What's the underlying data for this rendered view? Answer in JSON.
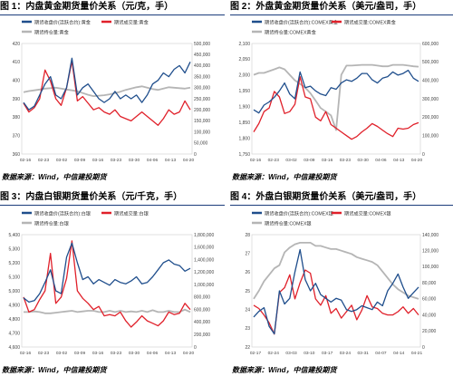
{
  "panels": [
    {
      "title": "图 1：内盘黄金期货量价关系（元/克，手）",
      "source": "数据来源：Wind，中信建投期货"
    },
    {
      "title": "图 2：外盘黄金期货量价关系（美元/盎司，手）",
      "source": "数据来源：Wind，中信建投期货"
    },
    {
      "title": "图 3：内盘白银期货量价关系（元/千克，手）",
      "source": "数据来源：Wind，中信建投期货"
    },
    {
      "title": "图 4：外盘白银期货量价关系（美元/盎司，手）",
      "source": "数据来源：Wind，中信建投期货"
    }
  ],
  "chart_data": [
    {
      "type": "line",
      "colors": [
        "#1f4e8c",
        "#e0202a",
        "#b5b5b5"
      ],
      "series": [
        {
          "name": "期货收盘价(活跃合约):黄金",
          "axis": "left",
          "values": [
            388,
            384,
            386,
            392,
            398,
            402,
            392,
            390,
            396,
            412,
            392,
            396,
            398,
            394,
            390,
            388,
            390,
            394,
            390,
            392,
            390,
            392,
            388,
            392,
            398,
            400,
            404,
            402,
            406,
            408,
            404,
            410
          ]
        },
        {
          "name": "期货成交量:黄金",
          "axis": "right",
          "values": [
            230000,
            190000,
            210000,
            250000,
            380000,
            330000,
            250000,
            220000,
            300000,
            420000,
            240000,
            260000,
            230000,
            200000,
            210000,
            190000,
            180000,
            200000,
            170000,
            160000,
            150000,
            170000,
            190000,
            170000,
            150000,
            130000,
            160000,
            200000,
            180000,
            190000,
            240000,
            200000
          ]
        },
        {
          "name": "期货持仓量:黄金",
          "axis": "right",
          "values": [
            280000,
            285000,
            288000,
            292000,
            296000,
            298000,
            300000,
            296000,
            292000,
            288000,
            284000,
            276000,
            268000,
            262000,
            264000,
            266000,
            270000,
            276000,
            282000,
            290000,
            296000,
            302000,
            306000,
            300000,
            294000,
            290000,
            296000,
            302000,
            300000,
            298000,
            296000,
            300000
          ]
        }
      ],
      "x_tick_labels": [
        "02-16",
        "02-23",
        "03-02",
        "03-09",
        "03-16",
        "03-23",
        "03-30",
        "04-06",
        "04-13",
        "04-20"
      ],
      "left_axis": {
        "min": 360,
        "max": 420,
        "ticks": [
          "360",
          "370",
          "380",
          "390",
          "400",
          "410",
          "420"
        ]
      },
      "right_axis": {
        "min": 0,
        "max": 500000,
        "ticks": [
          "0",
          "50,000",
          "100,000",
          "150,000",
          "200,000",
          "250,000",
          "300,000",
          "350,000",
          "400,000",
          "450,000",
          "500,000"
        ]
      }
    },
    {
      "type": "line",
      "colors": [
        "#1f4e8c",
        "#e0202a",
        "#b5b5b5"
      ],
      "series": [
        {
          "name": "期货收盘价(活跃合约):COMEX黄金",
          "axis": "left",
          "values": [
            1890,
            1880,
            1905,
            1915,
            1930,
            1950,
            1975,
            1940,
            1925,
            2010,
            1960,
            1965,
            1950,
            1940,
            1935,
            1960,
            1955,
            1975,
            1985,
            1980,
            1990,
            2005,
            2005,
            1985,
            1975,
            1990,
            1995,
            2010,
            2000,
            2005,
            2015,
            1990,
            1980
          ]
        },
        {
          "name": "期货成交量:COMEX黄金",
          "axis": "right",
          "values": [
            120000,
            165000,
            230000,
            250000,
            340000,
            310000,
            220000,
            230000,
            270000,
            420000,
            310000,
            300000,
            200000,
            180000,
            230000,
            160000,
            140000,
            120000,
            100000,
            80000,
            95000,
            120000,
            140000,
            165000,
            150000,
            130000,
            110000,
            95000,
            140000,
            135000,
            140000,
            160000,
            170000
          ]
        },
        {
          "name": "期货持仓量:COMEX黄金",
          "axis": "right",
          "values": [
            430000,
            440000,
            440000,
            450000,
            460000,
            470000,
            460000,
            430000,
            400000,
            380000,
            360000,
            330000,
            290000,
            250000,
            230000,
            210000,
            130000,
            430000,
            480000,
            480000,
            482000,
            484000,
            484000,
            484000,
            480000,
            476000,
            476000,
            484000,
            484000,
            484000,
            480000,
            476000,
            474000
          ]
        }
      ],
      "x_tick_labels": [
        "02-16",
        "02-23",
        "03-02",
        "03-09",
        "03-16",
        "03-23",
        "03-30",
        "04-06",
        "04-13",
        "04-20"
      ],
      "left_axis": {
        "min": 1750,
        "max": 2100,
        "ticks": [
          "1,750",
          "1,800",
          "1,850",
          "1,900",
          "1,950",
          "2,000",
          "2,050",
          "2,100"
        ]
      },
      "right_axis": {
        "min": 0,
        "max": 600000,
        "ticks": [
          "0",
          "100,000",
          "200,000",
          "300,000",
          "400,000",
          "500,000",
          "600,000"
        ]
      }
    },
    {
      "type": "line",
      "colors": [
        "#1f4e8c",
        "#e0202a",
        "#b5b5b5"
      ],
      "series": [
        {
          "name": "期货收盘价(活跃合约):白银",
          "axis": "left",
          "values": [
            4950,
            4920,
            4930,
            4980,
            5060,
            5150,
            5000,
            4980,
            5240,
            5340,
            5200,
            5080,
            5100,
            5050,
            5080,
            5060,
            5040,
            5080,
            5060,
            5050,
            5070,
            5100,
            5050,
            5060,
            5100,
            5150,
            5200,
            5220,
            5190,
            5180,
            5140,
            5160
          ]
        },
        {
          "name": "期货成交量:白银",
          "axis": "right",
          "values": [
            800000,
            560000,
            600000,
            760000,
            900000,
            1500000,
            700000,
            800000,
            1100000,
            1700000,
            900000,
            780000,
            700000,
            600000,
            650000,
            500000,
            520000,
            500000,
            560000,
            420000,
            320000,
            400000,
            500000,
            420000,
            380000,
            340000,
            420000,
            560000,
            520000,
            540000,
            700000,
            600000
          ]
        },
        {
          "name": "期货持仓量:白银",
          "axis": "right",
          "values": [
            560000,
            560000,
            570000,
            560000,
            540000,
            540000,
            550000,
            560000,
            570000,
            580000,
            560000,
            570000,
            580000,
            580000,
            560000,
            560000,
            580000,
            560000,
            580000,
            560000,
            570000,
            560000,
            580000,
            560000,
            590000,
            560000,
            560000,
            580000,
            560000,
            560000,
            600000,
            560000
          ]
        }
      ],
      "x_tick_labels": [
        "02-16",
        "02-23",
        "03-02",
        "03-09",
        "03-16",
        "03-23",
        "03-30",
        "04-06",
        "04-13",
        "04-20"
      ],
      "left_axis": {
        "min": 4600,
        "max": 5400,
        "ticks": [
          "4,600",
          "4,700",
          "4,800",
          "4,900",
          "5,000",
          "5,100",
          "5,200",
          "5,300",
          "5,400"
        ]
      },
      "right_axis": {
        "min": 0,
        "max": 1800000,
        "ticks": [
          "0",
          "200,000",
          "400,000",
          "600,000",
          "800,000",
          "1,000,000",
          "1,200,000",
          "1,400,000",
          "1,600,000",
          "1,800,000"
        ]
      }
    },
    {
      "type": "line",
      "colors": [
        "#1f4e8c",
        "#e0202a",
        "#b5b5b5"
      ],
      "series": [
        {
          "name": "期货收盘价(活跃合约):COMEX银",
          "axis": "left",
          "values": [
            23.6,
            23.9,
            24.1,
            23.1,
            22.7,
            25.0,
            24.3,
            24.6,
            26.0,
            27.2,
            25.6,
            25.0,
            25.4,
            24.8,
            24.6,
            24.4,
            24.6,
            24.5,
            24.0,
            23.9,
            24.0,
            24.2,
            24.1,
            24.0,
            24.4,
            24.2,
            25.0,
            25.4,
            25.9,
            25.2,
            24.6,
            24.9,
            25.2
          ]
        },
        {
          "name": "期货成交量:COMEX银",
          "axis": "right",
          "values": [
            52000,
            48000,
            40000,
            30000,
            16000,
            68000,
            74000,
            90000,
            60000,
            80000,
            96000,
            92000,
            60000,
            52000,
            64000,
            42000,
            48000,
            36000,
            44000,
            52000,
            34000,
            46000,
            64000,
            50000,
            48000,
            42000,
            40000,
            40000,
            44000,
            50000,
            42000,
            48000,
            40000
          ]
        },
        {
          "name": "期货持仓量:COMEX银",
          "axis": "right",
          "values": [
            60000,
            70000,
            82000,
            90000,
            98000,
            102000,
            118000,
            124000,
            128000,
            130000,
            130000,
            130000,
            126000,
            126000,
            124000,
            122000,
            122000,
            120000,
            118000,
            116000,
            112000,
            110000,
            108000,
            106000,
            102000,
            94000,
            86000,
            78000,
            72000,
            68000,
            64000,
            62000,
            60000
          ]
        }
      ],
      "x_tick_labels": [
        "02-17",
        "02-24",
        "03-03",
        "03-10",
        "03-17",
        "03-24",
        "03-31",
        "04-07",
        "04-14",
        "04-21"
      ],
      "left_axis": {
        "min": 22,
        "max": 28,
        "ticks": [
          "22",
          "23",
          "24",
          "25",
          "26",
          "27",
          "28"
        ]
      },
      "right_axis": {
        "min": 0,
        "max": 140000,
        "ticks": [
          "0",
          "20,000",
          "40,000",
          "60,000",
          "80,000",
          "100,000",
          "120,000",
          "140,000"
        ]
      }
    }
  ]
}
